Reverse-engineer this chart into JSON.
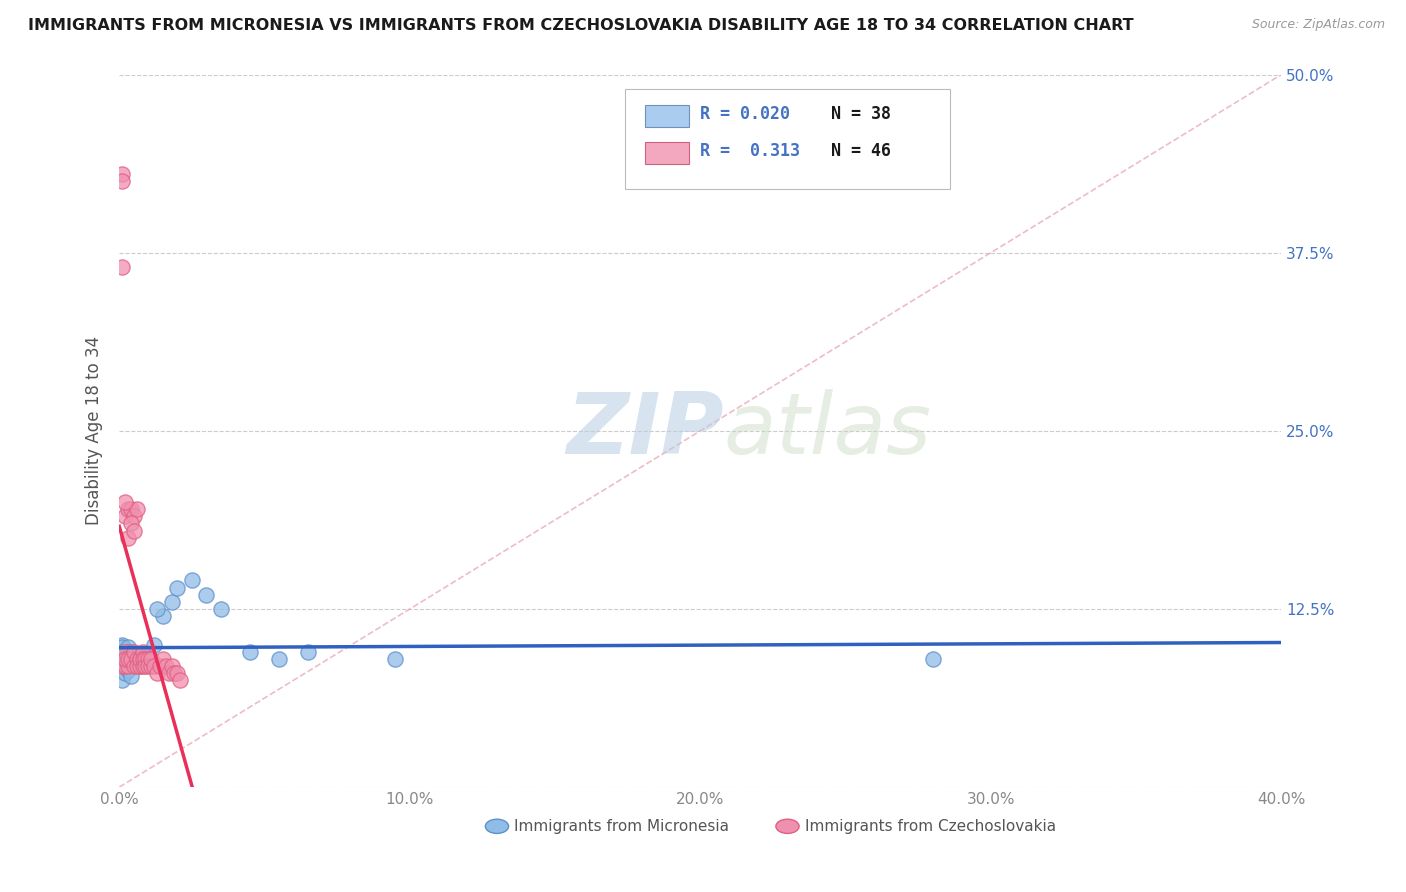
{
  "title": "IMMIGRANTS FROM MICRONESIA VS IMMIGRANTS FROM CZECHOSLOVAKIA DISABILITY AGE 18 TO 34 CORRELATION CHART",
  "source_text": "Source: ZipAtlas.com",
  "ylabel": "Disability Age 18 to 34",
  "xlim": [
    0.0,
    0.4
  ],
  "ylim": [
    0.0,
    0.5
  ],
  "xticks": [
    0.0,
    0.1,
    0.2,
    0.3,
    0.4
  ],
  "xticklabels": [
    "0.0%",
    "10.0%",
    "20.0%",
    "30.0%",
    "40.0%"
  ],
  "yticks": [
    0.0,
    0.125,
    0.25,
    0.375,
    0.5
  ],
  "right_yticklabels": [
    "",
    "12.5%",
    "25.0%",
    "37.5%",
    "50.0%"
  ],
  "watermark_zip": "ZIP",
  "watermark_atlas": "atlas",
  "micronesia_color": "#90bce8",
  "micronesia_edge": "#6090c8",
  "czechoslovakia_color": "#f090b0",
  "czechoslovakia_edge": "#e06080",
  "trend_micronesia_color": "#3060c0",
  "trend_czechoslovakia_color": "#e8305a",
  "diagonal_color": "#e8a0b0",
  "background_color": "#ffffff",
  "grid_color": "#cccccc",
  "title_color": "#1a1a1a",
  "axis_label_color": "#555555",
  "right_tick_color": "#4472C4",
  "legend_r_color": "#4472C4",
  "legend_n_color": "#1a1a1a",
  "dot_size": 120,
  "micronesia_x": [
    0.002,
    0.003,
    0.001,
    0.004,
    0.002,
    0.003,
    0.001,
    0.005,
    0.002,
    0.001,
    0.006,
    0.004,
    0.003,
    0.007,
    0.005,
    0.003,
    0.008,
    0.006,
    0.004,
    0.009,
    0.01,
    0.012,
    0.015,
    0.013,
    0.018,
    0.02,
    0.025,
    0.03,
    0.035,
    0.045,
    0.055,
    0.065,
    0.095,
    0.28,
    0.001,
    0.002,
    0.003,
    0.004
  ],
  "micronesia_y": [
    0.09,
    0.095,
    0.1,
    0.088,
    0.092,
    0.085,
    0.098,
    0.093,
    0.087,
    0.095,
    0.088,
    0.092,
    0.098,
    0.085,
    0.09,
    0.095,
    0.092,
    0.088,
    0.095,
    0.09,
    0.092,
    0.1,
    0.12,
    0.125,
    0.13,
    0.14,
    0.145,
    0.135,
    0.125,
    0.095,
    0.09,
    0.095,
    0.09,
    0.09,
    0.075,
    0.08,
    0.082,
    0.078
  ],
  "czechoslovakia_x": [
    0.001,
    0.001,
    0.001,
    0.002,
    0.002,
    0.003,
    0.003,
    0.001,
    0.002,
    0.002,
    0.003,
    0.003,
    0.004,
    0.004,
    0.005,
    0.005,
    0.005,
    0.006,
    0.006,
    0.006,
    0.007,
    0.007,
    0.007,
    0.008,
    0.008,
    0.008,
    0.009,
    0.009,
    0.01,
    0.01,
    0.011,
    0.011,
    0.012,
    0.013,
    0.014,
    0.015,
    0.016,
    0.017,
    0.018,
    0.019,
    0.02,
    0.021,
    0.002,
    0.003,
    0.004,
    0.005
  ],
  "czechoslovakia_y": [
    0.43,
    0.425,
    0.085,
    0.095,
    0.085,
    0.09,
    0.085,
    0.365,
    0.19,
    0.09,
    0.195,
    0.09,
    0.195,
    0.09,
    0.19,
    0.095,
    0.085,
    0.195,
    0.09,
    0.085,
    0.09,
    0.085,
    0.09,
    0.095,
    0.085,
    0.09,
    0.09,
    0.085,
    0.09,
    0.085,
    0.085,
    0.09,
    0.085,
    0.08,
    0.085,
    0.09,
    0.085,
    0.08,
    0.085,
    0.08,
    0.08,
    0.075,
    0.2,
    0.175,
    0.185,
    0.18
  ],
  "micronesia_R": 0.02,
  "czechoslovakia_R": 0.313,
  "micronesia_N": 38,
  "czechoslovakia_N": 46
}
